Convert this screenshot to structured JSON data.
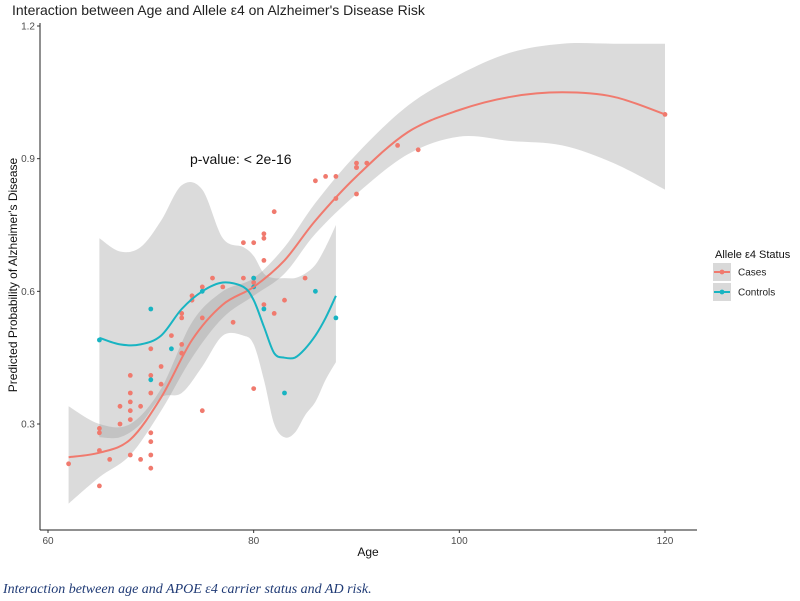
{
  "chart_data": {
    "type": "scatter",
    "title": "Interaction between Age and Allele ε4 on Alzheimer's Disease Risk",
    "xlabel": "Age",
    "ylabel": "Predicted Probability of Alzheimer's Disease",
    "xlim": [
      60,
      125
    ],
    "ylim": [
      0.05,
      1.22
    ],
    "xticks": [
      60,
      80,
      100,
      120
    ],
    "yticks": [
      0.3,
      0.6,
      0.9,
      1.2
    ],
    "xtick_labels": [
      "60",
      "80",
      "100",
      "120"
    ],
    "ytick_labels": [
      "0.3",
      "0.6",
      "0.9",
      "1.2"
    ],
    "grid": false,
    "legend": {
      "title": "Allele ε4 Status",
      "position": "right"
    },
    "annotation": "p-value: < 2e-16",
    "series": [
      {
        "name": "Cases",
        "color": "#f07a6e",
        "points": [
          [
            62,
            0.21
          ],
          [
            65,
            0.24
          ],
          [
            65,
            0.16
          ],
          [
            65,
            0.28
          ],
          [
            65,
            0.29
          ],
          [
            66,
            0.22
          ],
          [
            67,
            0.3
          ],
          [
            67,
            0.34
          ],
          [
            68,
            0.23
          ],
          [
            68,
            0.33
          ],
          [
            68,
            0.35
          ],
          [
            68,
            0.37
          ],
          [
            68,
            0.41
          ],
          [
            68,
            0.31
          ],
          [
            69,
            0.22
          ],
          [
            69,
            0.34
          ],
          [
            70,
            0.2
          ],
          [
            70,
            0.23
          ],
          [
            70,
            0.26
          ],
          [
            70,
            0.28
          ],
          [
            70,
            0.37
          ],
          [
            70,
            0.41
          ],
          [
            70,
            0.47
          ],
          [
            71,
            0.39
          ],
          [
            71,
            0.43
          ],
          [
            72,
            0.5
          ],
          [
            73,
            0.46
          ],
          [
            73,
            0.48
          ],
          [
            73,
            0.54
          ],
          [
            73,
            0.55
          ],
          [
            74,
            0.58
          ],
          [
            74,
            0.59
          ],
          [
            75,
            0.33
          ],
          [
            75,
            0.54
          ],
          [
            75,
            0.61
          ],
          [
            76,
            0.63
          ],
          [
            77,
            0.61
          ],
          [
            78,
            0.53
          ],
          [
            79,
            0.71
          ],
          [
            79,
            0.63
          ],
          [
            80,
            0.71
          ],
          [
            80,
            0.63
          ],
          [
            80,
            0.62
          ],
          [
            80,
            0.38
          ],
          [
            81,
            0.73
          ],
          [
            81,
            0.72
          ],
          [
            81,
            0.57
          ],
          [
            81,
            0.67
          ],
          [
            82,
            0.78
          ],
          [
            82,
            0.55
          ],
          [
            83,
            0.58
          ],
          [
            85,
            0.63
          ],
          [
            86,
            0.85
          ],
          [
            87,
            0.86
          ],
          [
            88,
            0.81
          ],
          [
            88,
            0.86
          ],
          [
            90,
            0.88
          ],
          [
            90,
            0.89
          ],
          [
            90,
            0.88
          ],
          [
            90,
            0.82
          ],
          [
            91,
            0.89
          ],
          [
            94,
            0.93
          ],
          [
            96,
            0.92
          ],
          [
            120,
            1.0
          ]
        ],
        "fit": [
          [
            62,
            0.225
          ],
          [
            65,
            0.235
          ],
          [
            68,
            0.265
          ],
          [
            71,
            0.36
          ],
          [
            74,
            0.49
          ],
          [
            77,
            0.57
          ],
          [
            80,
            0.61
          ],
          [
            83,
            0.67
          ],
          [
            86,
            0.76
          ],
          [
            90,
            0.86
          ],
          [
            95,
            0.96
          ],
          [
            100,
            1.01
          ],
          [
            105,
            1.04
          ],
          [
            110,
            1.05
          ],
          [
            115,
            1.04
          ],
          [
            120,
            1.0
          ]
        ],
        "band_upper": [
          [
            62,
            0.34
          ],
          [
            65,
            0.3
          ],
          [
            68,
            0.3
          ],
          [
            71,
            0.38
          ],
          [
            74,
            0.53
          ],
          [
            77,
            0.6
          ],
          [
            80,
            0.63
          ],
          [
            83,
            0.7
          ],
          [
            86,
            0.8
          ],
          [
            90,
            0.91
          ],
          [
            95,
            1.02
          ],
          [
            100,
            1.09
          ],
          [
            105,
            1.14
          ],
          [
            110,
            1.16
          ],
          [
            115,
            1.16
          ],
          [
            120,
            1.16
          ]
        ],
        "band_lower": [
          [
            62,
            0.12
          ],
          [
            65,
            0.18
          ],
          [
            68,
            0.23
          ],
          [
            71,
            0.33
          ],
          [
            74,
            0.45
          ],
          [
            77,
            0.54
          ],
          [
            80,
            0.59
          ],
          [
            83,
            0.64
          ],
          [
            86,
            0.73
          ],
          [
            90,
            0.82
          ],
          [
            95,
            0.91
          ],
          [
            100,
            0.95
          ],
          [
            105,
            0.94
          ],
          [
            110,
            0.93
          ],
          [
            115,
            0.89
          ],
          [
            120,
            0.83
          ]
        ]
      },
      {
        "name": "Controls",
        "color": "#18b4c2",
        "points": [
          [
            65,
            0.49
          ],
          [
            70,
            0.56
          ],
          [
            70,
            0.4
          ],
          [
            72,
            0.47
          ],
          [
            75,
            0.6
          ],
          [
            80,
            0.63
          ],
          [
            80,
            0.61
          ],
          [
            81,
            0.56
          ],
          [
            83,
            0.37
          ],
          [
            86,
            0.6
          ],
          [
            88,
            0.54
          ]
        ],
        "fit": [
          [
            65,
            0.495
          ],
          [
            67,
            0.48
          ],
          [
            69,
            0.48
          ],
          [
            71,
            0.5
          ],
          [
            73,
            0.56
          ],
          [
            75,
            0.6
          ],
          [
            77,
            0.62
          ],
          [
            79,
            0.61
          ],
          [
            80,
            0.58
          ],
          [
            81,
            0.52
          ],
          [
            82,
            0.46
          ],
          [
            83,
            0.45
          ],
          [
            84,
            0.45
          ],
          [
            85,
            0.47
          ],
          [
            86,
            0.5
          ],
          [
            87,
            0.54
          ],
          [
            88,
            0.59
          ]
        ],
        "band_upper": [
          [
            65,
            0.72
          ],
          [
            67,
            0.69
          ],
          [
            69,
            0.7
          ],
          [
            71,
            0.76
          ],
          [
            73,
            0.84
          ],
          [
            75,
            0.83
          ],
          [
            77,
            0.72
          ],
          [
            79,
            0.7
          ],
          [
            80,
            0.68
          ],
          [
            81,
            0.64
          ],
          [
            82,
            0.63
          ],
          [
            83,
            0.63
          ],
          [
            84,
            0.63
          ],
          [
            85,
            0.64
          ],
          [
            86,
            0.66
          ],
          [
            87,
            0.7
          ],
          [
            88,
            0.75
          ]
        ],
        "band_lower": [
          [
            65,
            0.27
          ],
          [
            67,
            0.27
          ],
          [
            69,
            0.3
          ],
          [
            71,
            0.36
          ],
          [
            73,
            0.37
          ],
          [
            75,
            0.43
          ],
          [
            77,
            0.5
          ],
          [
            79,
            0.5
          ],
          [
            80,
            0.48
          ],
          [
            81,
            0.4
          ],
          [
            82,
            0.3
          ],
          [
            83,
            0.27
          ],
          [
            84,
            0.28
          ],
          [
            85,
            0.32
          ],
          [
            86,
            0.35
          ],
          [
            87,
            0.4
          ],
          [
            88,
            0.44
          ]
        ]
      }
    ]
  },
  "caption": "Interaction between age and APOE ε4 carrier status and AD risk."
}
